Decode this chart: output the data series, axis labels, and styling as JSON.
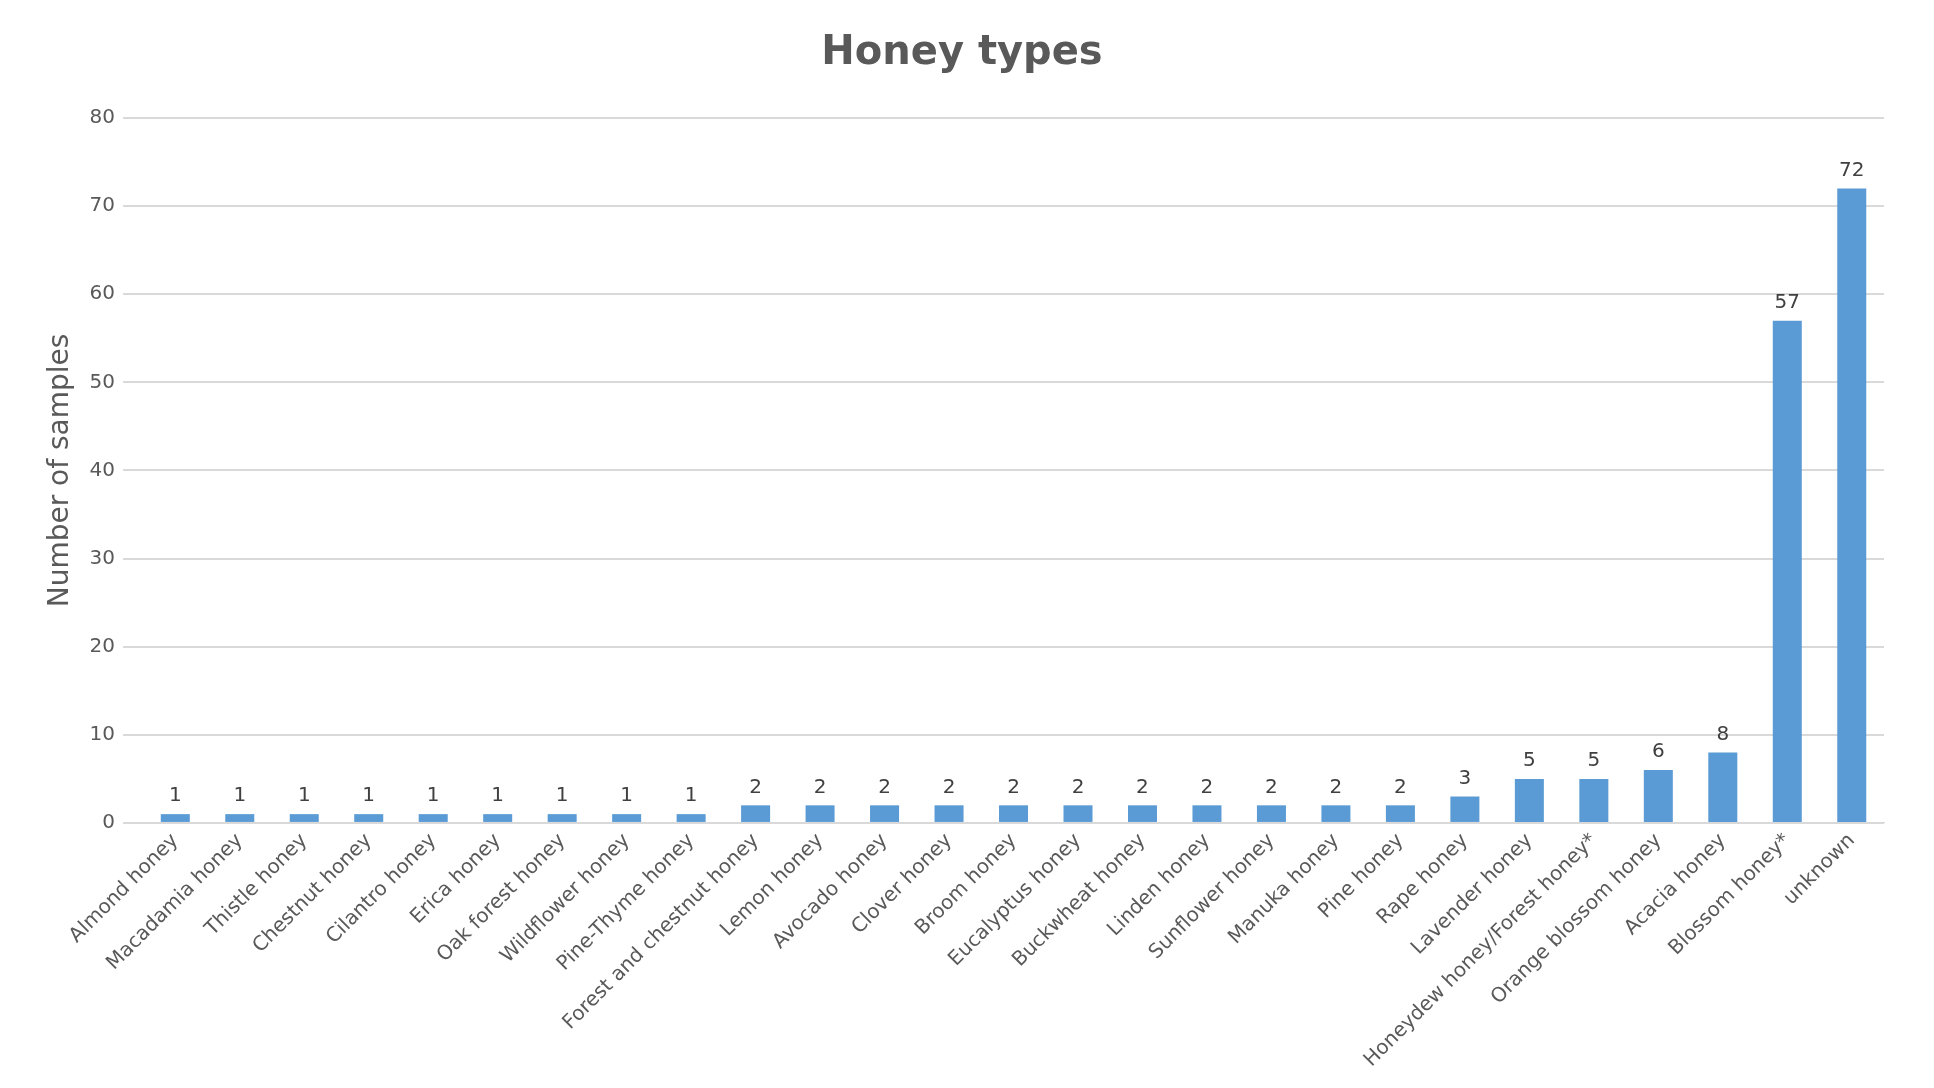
{
  "chart_data": {
    "type": "bar",
    "title": "Honey types",
    "ylabel": "Number of samples",
    "categories": [
      "Almond honey",
      "Macadamia honey",
      "Thistle honey",
      "Chestnut honey",
      "Cilantro honey",
      "Erica honey",
      "Oak forest honey",
      "Wildflower honey",
      "Pine-Thyme honey",
      "Forest and chestnut honey",
      "Lemon honey",
      "Avocado honey",
      "Clover honey",
      "Broom honey",
      "Eucalyptus honey",
      "Buckwheat honey",
      "Linden honey",
      "Sunflower honey",
      "Manuka honey",
      "Pine honey",
      "Rape honey",
      "Lavender honey",
      "Honeydew honey/Forest honey*",
      "Orange blossom honey",
      "Acacia honey",
      "Blossom honey*",
      "unknown"
    ],
    "values": [
      1,
      1,
      1,
      1,
      1,
      1,
      1,
      1,
      1,
      2,
      2,
      2,
      2,
      2,
      2,
      2,
      2,
      2,
      2,
      2,
      3,
      5,
      5,
      6,
      8,
      57,
      72
    ],
    "color": "#5b9bd5",
    "ylim": [
      0,
      80
    ],
    "yticks": [
      0,
      10,
      20,
      30,
      40,
      50,
      60,
      70,
      80
    ],
    "grid": "y",
    "data_labels": true
  }
}
